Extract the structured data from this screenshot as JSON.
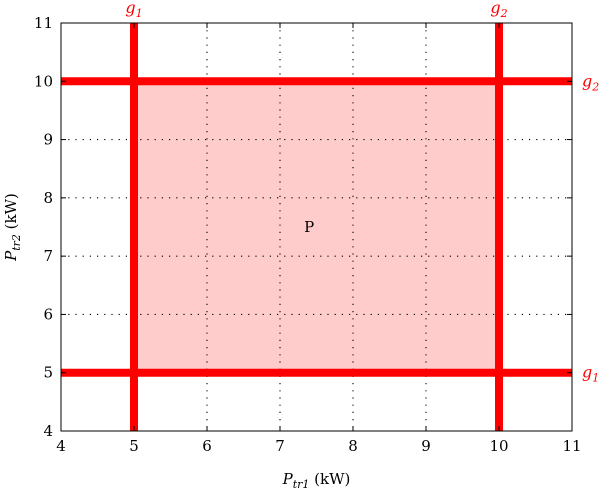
{
  "chart_data": {
    "type": "area",
    "title": "",
    "xlabel": {
      "main": "P",
      "sub": "tr1",
      "unit": " (kW)"
    },
    "ylabel": {
      "main": "P",
      "sub": "tr2",
      "unit": " (kW)"
    },
    "xlim": [
      4,
      11
    ],
    "ylim": [
      4,
      11
    ],
    "xticks": [
      "4",
      "5",
      "6",
      "7",
      "8",
      "9",
      "10",
      "11"
    ],
    "yticks": [
      "4",
      "5",
      "6",
      "7",
      "8",
      "9",
      "10",
      "11"
    ],
    "grid": true,
    "constraint_color": "#ff0000",
    "region_color": "#ffcccc",
    "vertical_lines": [
      {
        "x": 5,
        "label": {
          "main": "g",
          "sub": "1"
        }
      },
      {
        "x": 10,
        "label": {
          "main": "g",
          "sub": "2"
        }
      }
    ],
    "horizontal_lines": [
      {
        "y": 10,
        "label": {
          "main": "g",
          "sub": "2"
        }
      },
      {
        "y": 5,
        "label": {
          "main": "g",
          "sub": "1"
        }
      }
    ],
    "region": {
      "x": [
        5,
        10
      ],
      "y": [
        5,
        10
      ],
      "label": "P",
      "label_pos": [
        7.4,
        7.5
      ]
    }
  }
}
